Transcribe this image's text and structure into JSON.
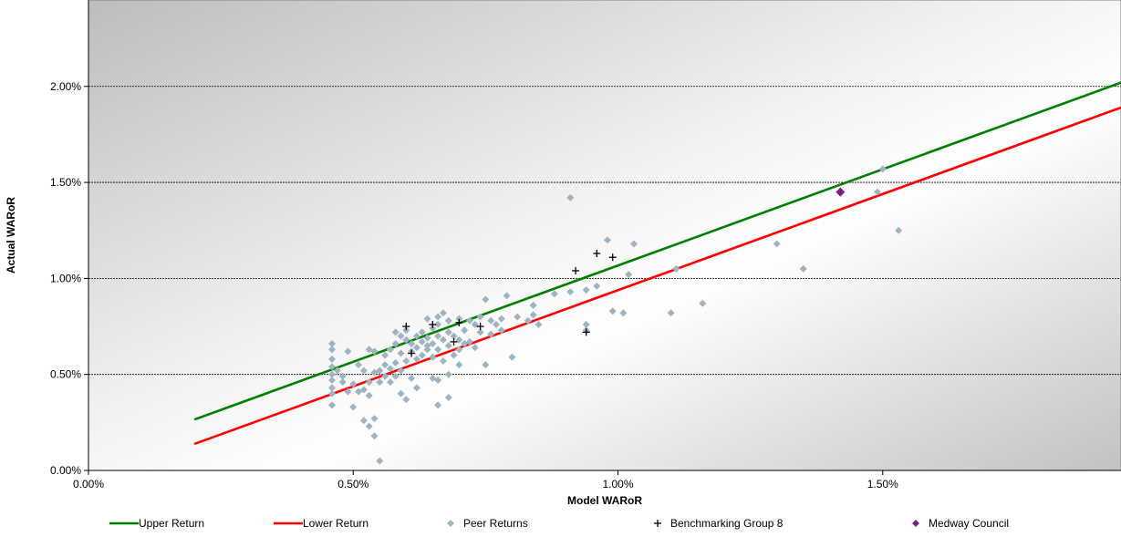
{
  "chart_data": {
    "type": "scatter",
    "title": "",
    "xlabel": "Model WARoR",
    "ylabel": "Actual WARoR",
    "xlim": [
      0,
      0.0195
    ],
    "ylim": [
      0,
      0.0245
    ],
    "x_ticks": [
      "0.00%",
      "0.50%",
      "1.00%",
      "1.50%"
    ],
    "y_ticks": [
      "0.00%",
      "0.50%",
      "1.00%",
      "1.50%",
      "2.00%"
    ],
    "grid": "horizontal",
    "legend_position": "bottom",
    "series": [
      {
        "name": "Upper Return",
        "kind": "line",
        "color": "#008000",
        "points": [
          [
            0.002,
            0.00265
          ],
          [
            0.0195,
            0.0202
          ]
        ]
      },
      {
        "name": "Lower Return",
        "kind": "line",
        "color": "#ff0000",
        "points": [
          [
            0.002,
            0.00138
          ],
          [
            0.0195,
            0.0189
          ]
        ]
      },
      {
        "name": "Peer Returns",
        "kind": "diamond",
        "color": "#9fb4c3",
        "points": [
          [
            0.0046,
            0.0066
          ],
          [
            0.0046,
            0.0063
          ],
          [
            0.0046,
            0.0058
          ],
          [
            0.0046,
            0.0054
          ],
          [
            0.0046,
            0.005
          ],
          [
            0.0046,
            0.0047
          ],
          [
            0.0046,
            0.0043
          ],
          [
            0.0046,
            0.004
          ],
          [
            0.0046,
            0.0034
          ],
          [
            0.0047,
            0.0052
          ],
          [
            0.0048,
            0.0049
          ],
          [
            0.0048,
            0.0046
          ],
          [
            0.0049,
            0.0062
          ],
          [
            0.0049,
            0.0041
          ],
          [
            0.005,
            0.0045
          ],
          [
            0.005,
            0.0033
          ],
          [
            0.0051,
            0.0041
          ],
          [
            0.0051,
            0.0055
          ],
          [
            0.0052,
            0.0042
          ],
          [
            0.0052,
            0.0026
          ],
          [
            0.0052,
            0.0052
          ],
          [
            0.0053,
            0.0023
          ],
          [
            0.0053,
            0.0046
          ],
          [
            0.0053,
            0.0039
          ],
          [
            0.0053,
            0.0063
          ],
          [
            0.0054,
            0.0018
          ],
          [
            0.0054,
            0.0027
          ],
          [
            0.0054,
            0.0051
          ],
          [
            0.0054,
            0.0062
          ],
          [
            0.0055,
            0.0046
          ],
          [
            0.0055,
            0.0005
          ],
          [
            0.0055,
            0.0052
          ],
          [
            0.0056,
            0.0049
          ],
          [
            0.0056,
            0.0055
          ],
          [
            0.0056,
            0.006
          ],
          [
            0.0057,
            0.0053
          ],
          [
            0.0057,
            0.0063
          ],
          [
            0.0057,
            0.0046
          ],
          [
            0.0058,
            0.0072
          ],
          [
            0.0058,
            0.0066
          ],
          [
            0.0058,
            0.0056
          ],
          [
            0.0058,
            0.0049
          ],
          [
            0.0059,
            0.007
          ],
          [
            0.0059,
            0.0061
          ],
          [
            0.0059,
            0.004
          ],
          [
            0.0059,
            0.0052
          ],
          [
            0.006,
            0.0068
          ],
          [
            0.006,
            0.0073
          ],
          [
            0.006,
            0.0057
          ],
          [
            0.006,
            0.0037
          ],
          [
            0.0061,
            0.0066
          ],
          [
            0.0061,
            0.0062
          ],
          [
            0.0061,
            0.0048
          ],
          [
            0.0062,
            0.007
          ],
          [
            0.0062,
            0.0064
          ],
          [
            0.0062,
            0.0058
          ],
          [
            0.0062,
            0.0043
          ],
          [
            0.0063,
            0.0067
          ],
          [
            0.0063,
            0.0072
          ],
          [
            0.0063,
            0.006
          ],
          [
            0.0064,
            0.0069
          ],
          [
            0.0064,
            0.0065
          ],
          [
            0.0064,
            0.0079
          ],
          [
            0.0064,
            0.0063
          ],
          [
            0.0065,
            0.0074
          ],
          [
            0.0065,
            0.0066
          ],
          [
            0.0065,
            0.0059
          ],
          [
            0.0065,
            0.0048
          ],
          [
            0.0066,
            0.008
          ],
          [
            0.0066,
            0.0076
          ],
          [
            0.0066,
            0.007
          ],
          [
            0.0066,
            0.0063
          ],
          [
            0.0066,
            0.0047
          ],
          [
            0.0066,
            0.0034
          ],
          [
            0.0067,
            0.0082
          ],
          [
            0.0067,
            0.0068
          ],
          [
            0.0067,
            0.0057
          ],
          [
            0.0068,
            0.0078
          ],
          [
            0.0068,
            0.0072
          ],
          [
            0.0068,
            0.0065
          ],
          [
            0.0068,
            0.005
          ],
          [
            0.0068,
            0.0038
          ],
          [
            0.0069,
            0.007
          ],
          [
            0.0069,
            0.006
          ],
          [
            0.007,
            0.0079
          ],
          [
            0.007,
            0.0068
          ],
          [
            0.007,
            0.0063
          ],
          [
            0.007,
            0.0055
          ],
          [
            0.0071,
            0.0066
          ],
          [
            0.0071,
            0.0073
          ],
          [
            0.0072,
            0.0078
          ],
          [
            0.0072,
            0.0067
          ],
          [
            0.0073,
            0.0076
          ],
          [
            0.0073,
            0.0064
          ],
          [
            0.0074,
            0.008
          ],
          [
            0.0074,
            0.0072
          ],
          [
            0.0075,
            0.0089
          ],
          [
            0.0075,
            0.0055
          ],
          [
            0.0076,
            0.0071
          ],
          [
            0.0076,
            0.0078
          ],
          [
            0.0077,
            0.0076
          ],
          [
            0.0078,
            0.0073
          ],
          [
            0.0078,
            0.0079
          ],
          [
            0.0079,
            0.0091
          ],
          [
            0.008,
            0.0059
          ],
          [
            0.0081,
            0.008
          ],
          [
            0.0083,
            0.0078
          ],
          [
            0.0084,
            0.0081
          ],
          [
            0.0084,
            0.0086
          ],
          [
            0.0085,
            0.0076
          ],
          [
            0.0088,
            0.0092
          ],
          [
            0.0091,
            0.0093
          ],
          [
            0.0091,
            0.0142
          ],
          [
            0.0094,
            0.0094
          ],
          [
            0.0094,
            0.0076
          ],
          [
            0.0094,
            0.0073
          ],
          [
            0.0096,
            0.0096
          ],
          [
            0.0098,
            0.012
          ],
          [
            0.0099,
            0.0083
          ],
          [
            0.0101,
            0.0082
          ],
          [
            0.0102,
            0.0102
          ],
          [
            0.0103,
            0.0118
          ],
          [
            0.011,
            0.0082
          ],
          [
            0.0111,
            0.0105
          ],
          [
            0.0116,
            0.0087
          ],
          [
            0.013,
            0.0118
          ],
          [
            0.0135,
            0.0105
          ],
          [
            0.015,
            0.0157
          ],
          [
            0.0153,
            0.0125
          ],
          [
            0.0149,
            0.0145
          ]
        ]
      },
      {
        "name": "Benchmarking Group 8",
        "kind": "plus",
        "color": "#000000",
        "points": [
          [
            0.006,
            0.0075
          ],
          [
            0.0061,
            0.0061
          ],
          [
            0.0065,
            0.0076
          ],
          [
            0.0069,
            0.0067
          ],
          [
            0.007,
            0.0077
          ],
          [
            0.0074,
            0.0075
          ],
          [
            0.0092,
            0.0104
          ],
          [
            0.0094,
            0.0072
          ],
          [
            0.0096,
            0.0113
          ],
          [
            0.0099,
            0.0111
          ]
        ]
      },
      {
        "name": "Medway Council",
        "kind": "diamond",
        "color": "#7b1f86",
        "points": [
          [
            0.0142,
            0.0145
          ]
        ]
      }
    ]
  }
}
